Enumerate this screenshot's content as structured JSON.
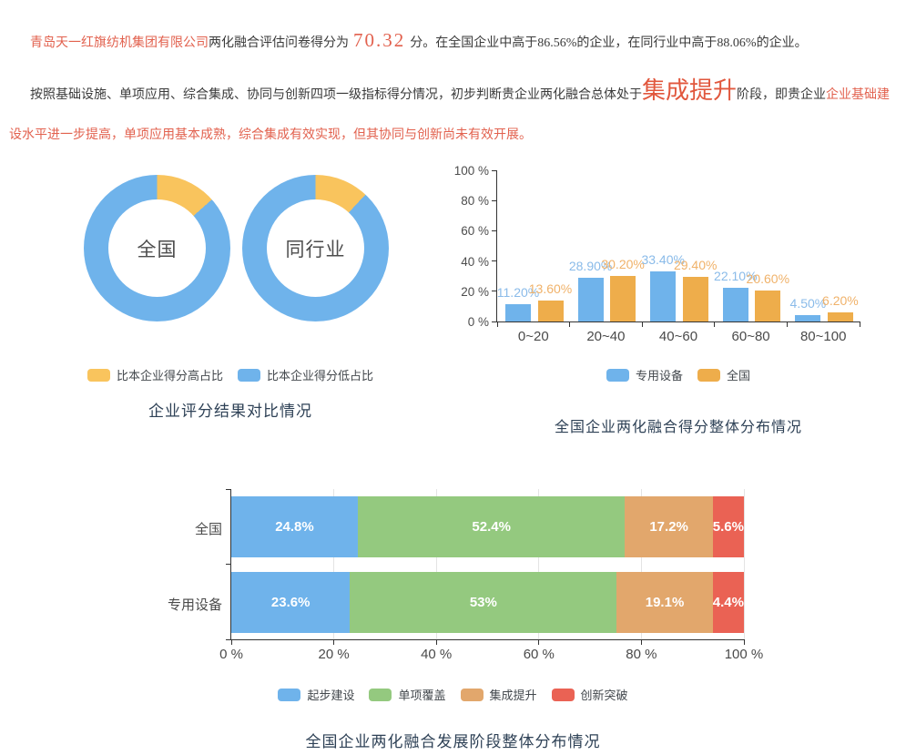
{
  "report": {
    "colors": {
      "accent_red": "#e2614e",
      "stage_red": "#e1573d",
      "body_text": "#3a3a3a",
      "title_navy": "#2e4156"
    },
    "p1": {
      "company": "青岛天一红旗纺机集团有限公司",
      "lead": "两化融合评估问卷得分为",
      "score": "70.32",
      "tail": "分。在全国企业中高于86.56%的企业，在同行业中高于88.06%的企业。"
    },
    "p2": {
      "part1": "按照基础设施、单项应用、综合集成、协同与创新四项一级指标得分情况，初步判断贵企业两化融合总体处于",
      "stage": "集成提升",
      "part2": "阶段，即贵企业",
      "part3": "企业基础建设水平进一步提高，单项应用基本成熟，综合集成有效实现，但其协同与创新尚未有效开展。"
    }
  },
  "chart_data": [
    {
      "type": "pie",
      "variant": "donut",
      "title": "企业评分结果对比情况",
      "legend_position": "bottom",
      "donuts": [
        {
          "label": "全国",
          "slices": [
            {
              "name": "比本企业得分高占比",
              "value": 13.44,
              "color": "#f9c45d"
            },
            {
              "name": "比本企业得分低占比",
              "value": 86.56,
              "color": "#6fb3eb"
            }
          ]
        },
        {
          "label": "同行业",
          "slices": [
            {
              "name": "比本企业得分高占比",
              "value": 11.94,
              "color": "#f9c45d"
            },
            {
              "name": "比本企业得分低占比",
              "value": 88.06,
              "color": "#6fb3eb"
            }
          ]
        }
      ]
    },
    {
      "type": "bar",
      "title": "全国企业两化融合得分整体分布情况",
      "categories": [
        "0~20",
        "20~40",
        "40~60",
        "60~80",
        "80~100"
      ],
      "series": [
        {
          "name": "专用设备",
          "color": "#6fb3eb",
          "label_color": "#8abbe9",
          "values": [
            11.2,
            28.9,
            33.4,
            22.1,
            4.5
          ],
          "labels": [
            "11.20%",
            "28.90%",
            "33.40%",
            "22.10%",
            "4.50%"
          ]
        },
        {
          "name": "全国",
          "color": "#eead4b",
          "label_color": "#f0b26a",
          "values": [
            13.6,
            30.2,
            29.4,
            20.6,
            6.2
          ],
          "labels": [
            "13.60%",
            "30.20%",
            "29.40%",
            "20.60%",
            "6.20%"
          ]
        }
      ],
      "ylim": [
        0,
        100
      ],
      "yticks": [
        "0 %",
        "20 %",
        "40 %",
        "60 %",
        "80 %",
        "100 %"
      ],
      "grid": false,
      "legend_position": "bottom"
    },
    {
      "type": "bar-horizontal-stacked",
      "title": "全国企业两化融合发展阶段整体分布情况",
      "categories": [
        "全国",
        "专用设备"
      ],
      "series": [
        {
          "name": "起步建设",
          "color": "#6fb3eb",
          "values": [
            24.8,
            23.6
          ],
          "labels": [
            "24.8%",
            "23.6%"
          ]
        },
        {
          "name": "单项覆盖",
          "color": "#94c97f",
          "values": [
            52.4,
            53
          ],
          "labels": [
            "52.4%",
            "53%"
          ]
        },
        {
          "name": "集成提升",
          "color": "#e2a76c",
          "values": [
            17.2,
            19.1
          ],
          "labels": [
            "17.2%",
            "19.1%"
          ]
        },
        {
          "name": "创新突破",
          "color": "#ea6254",
          "values": [
            5.6,
            4.4
          ],
          "labels": [
            "5.6%",
            "4.4%"
          ]
        }
      ],
      "xlim": [
        0,
        100
      ],
      "xticks": [
        "0 %",
        "20 %",
        "40 %",
        "60 %",
        "80 %",
        "100 %"
      ],
      "grid": true,
      "legend_position": "bottom"
    }
  ]
}
